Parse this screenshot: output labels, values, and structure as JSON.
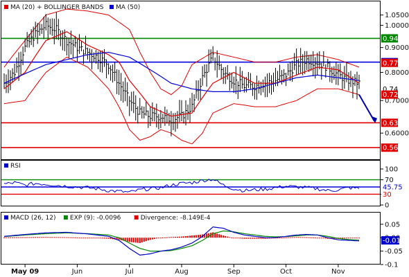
{
  "colors": {
    "price": "#000000",
    "ma20": "#e00000",
    "ma50": "#0000dd",
    "bands": "#e00000",
    "resistance": "#008800",
    "support": "#e00000",
    "current_line": "#0000dd",
    "arrow": "#0000aa",
    "macd": "#0000cc",
    "signal": "#008800",
    "divergence": "#e00000"
  },
  "chart_data": [
    {
      "type": "line",
      "panel": "price",
      "legend": [
        {
          "label": "MA (20) + BOLLINGER BANDS",
          "color": "#e00000"
        },
        {
          "label": "MA (50)",
          "color": "#0000dd"
        }
      ],
      "y_ticks": [
        "1.0500",
        "1.0000",
        "0.9000",
        "0.8000",
        "0.7000",
        "0.6000"
      ],
      "ylim": [
        0.53,
        1.12
      ],
      "scale": "log",
      "h_lines": [
        {
          "value": 0.94,
          "label": "0.94",
          "color": "#008800"
        },
        {
          "value": 0.84,
          "label": "0.84",
          "color": "#0000dd"
        },
        {
          "value": 0.63,
          "label": "0.63",
          "color": "#e00000"
        },
        {
          "value": 0.56,
          "label": "0.56",
          "color": "#e00000"
        }
      ],
      "value_tags": [
        {
          "value": 0.837,
          "label": "0.77",
          "color": "#e00000"
        },
        {
          "value": 0.74,
          "label": "0.74",
          "color": "#000000"
        },
        {
          "value": 0.72,
          "label": "0.72",
          "color": "#e00000"
        }
      ],
      "price_anchors": [
        [
          0,
          0.76
        ],
        [
          5,
          0.8
        ],
        [
          10,
          0.9
        ],
        [
          15,
          0.96
        ],
        [
          20,
          1.0
        ],
        [
          25,
          0.98
        ],
        [
          30,
          0.93
        ],
        [
          35,
          0.9
        ],
        [
          40,
          0.88
        ],
        [
          45,
          0.86
        ],
        [
          50,
          0.83
        ],
        [
          55,
          0.76
        ],
        [
          60,
          0.7
        ],
        [
          65,
          0.66
        ],
        [
          70,
          0.65
        ],
        [
          75,
          0.65
        ],
        [
          80,
          0.64
        ],
        [
          85,
          0.65
        ],
        [
          90,
          0.68
        ],
        [
          95,
          0.78
        ],
        [
          100,
          0.86
        ],
        [
          105,
          0.8
        ],
        [
          110,
          0.77
        ],
        [
          115,
          0.75
        ],
        [
          120,
          0.75
        ],
        [
          125,
          0.76
        ],
        [
          130,
          0.77
        ],
        [
          135,
          0.79
        ],
        [
          140,
          0.83
        ],
        [
          145,
          0.85
        ],
        [
          150,
          0.84
        ],
        [
          155,
          0.82
        ],
        [
          160,
          0.79
        ],
        [
          165,
          0.77
        ],
        [
          170,
          0.76
        ]
      ],
      "ma20_anchors": [
        [
          0,
          0.74
        ],
        [
          10,
          0.8
        ],
        [
          20,
          0.93
        ],
        [
          30,
          0.97
        ],
        [
          40,
          0.91
        ],
        [
          50,
          0.87
        ],
        [
          55,
          0.84
        ],
        [
          60,
          0.77
        ],
        [
          70,
          0.68
        ],
        [
          80,
          0.65
        ],
        [
          90,
          0.66
        ],
        [
          100,
          0.76
        ],
        [
          110,
          0.8
        ],
        [
          120,
          0.76
        ],
        [
          130,
          0.76
        ],
        [
          140,
          0.79
        ],
        [
          150,
          0.82
        ],
        [
          160,
          0.81
        ],
        [
          170,
          0.76
        ]
      ],
      "ma50_anchors": [
        [
          0,
          0.76
        ],
        [
          20,
          0.83
        ],
        [
          40,
          0.87
        ],
        [
          50,
          0.88
        ],
        [
          60,
          0.86
        ],
        [
          70,
          0.81
        ],
        [
          80,
          0.76
        ],
        [
          90,
          0.74
        ],
        [
          100,
          0.73
        ],
        [
          110,
          0.73
        ],
        [
          120,
          0.74
        ],
        [
          130,
          0.76
        ],
        [
          140,
          0.78
        ],
        [
          150,
          0.79
        ],
        [
          160,
          0.78
        ],
        [
          170,
          0.77
        ]
      ],
      "upper_band_anchors": [
        [
          0,
          0.82
        ],
        [
          10,
          0.93
        ],
        [
          20,
          1.05
        ],
        [
          30,
          1.08
        ],
        [
          40,
          1.07
        ],
        [
          50,
          1.05
        ],
        [
          60,
          0.98
        ],
        [
          65,
          0.88
        ],
        [
          70,
          0.8
        ],
        [
          75,
          0.74
        ],
        [
          80,
          0.72
        ],
        [
          85,
          0.75
        ],
        [
          90,
          0.83
        ],
        [
          100,
          0.88
        ],
        [
          110,
          0.86
        ],
        [
          120,
          0.84
        ],
        [
          130,
          0.84
        ],
        [
          140,
          0.86
        ],
        [
          150,
          0.87
        ],
        [
          160,
          0.85
        ],
        [
          170,
          0.82
        ]
      ],
      "lower_band_anchors": [
        [
          0,
          0.69
        ],
        [
          10,
          0.7
        ],
        [
          20,
          0.8
        ],
        [
          30,
          0.86
        ],
        [
          40,
          0.82
        ],
        [
          50,
          0.74
        ],
        [
          55,
          0.68
        ],
        [
          60,
          0.61
        ],
        [
          65,
          0.58
        ],
        [
          70,
          0.59
        ],
        [
          75,
          0.61
        ],
        [
          80,
          0.6
        ],
        [
          85,
          0.58
        ],
        [
          90,
          0.57
        ],
        [
          95,
          0.6
        ],
        [
          100,
          0.66
        ],
        [
          110,
          0.69
        ],
        [
          120,
          0.68
        ],
        [
          130,
          0.68
        ],
        [
          140,
          0.7
        ],
        [
          150,
          0.74
        ],
        [
          160,
          0.74
        ],
        [
          170,
          0.72
        ]
      ]
    },
    {
      "type": "line",
      "panel": "rsi",
      "legend": [
        {
          "label": "RSI",
          "color": "#0000cc"
        }
      ],
      "y_ticks": [
        "100",
        "70",
        "30",
        "0"
      ],
      "ylim": [
        0,
        100
      ],
      "h_lines": [
        {
          "value": 70,
          "color": "#008800"
        },
        {
          "value": 50,
          "color": "#0000dd"
        },
        {
          "value": 30,
          "color": "#e00000"
        }
      ],
      "value_tags": [
        {
          "value": 50,
          "label": "45.75",
          "color": "#0000cc"
        },
        {
          "value": 30,
          "label": "30",
          "color": "#e00000"
        }
      ],
      "rsi_anchors": [
        [
          0,
          58
        ],
        [
          5,
          62
        ],
        [
          10,
          55
        ],
        [
          15,
          60
        ],
        [
          20,
          58
        ],
        [
          25,
          55
        ],
        [
          30,
          52
        ],
        [
          35,
          50
        ],
        [
          40,
          48
        ],
        [
          45,
          45
        ],
        [
          50,
          40
        ],
        [
          55,
          38
        ],
        [
          60,
          35
        ],
        [
          65,
          42
        ],
        [
          70,
          45
        ],
        [
          75,
          48
        ],
        [
          80,
          55
        ],
        [
          85,
          60
        ],
        [
          90,
          62
        ],
        [
          95,
          68
        ],
        [
          100,
          72
        ],
        [
          105,
          55
        ],
        [
          110,
          45
        ],
        [
          115,
          40
        ],
        [
          120,
          42
        ],
        [
          125,
          44
        ],
        [
          130,
          48
        ],
        [
          135,
          52
        ],
        [
          140,
          50
        ],
        [
          145,
          48
        ],
        [
          150,
          45
        ],
        [
          155,
          40
        ],
        [
          160,
          42
        ],
        [
          165,
          48
        ],
        [
          170,
          46
        ]
      ]
    },
    {
      "type": "line",
      "panel": "macd",
      "legend": [
        {
          "label": "MACD (26, 12)",
          "color": "#0000cc"
        },
        {
          "label": "EXP (9): -0.0096",
          "color": "#008800"
        },
        {
          "label": "Divergence: -8.149E-4",
          "color": "#e00000"
        }
      ],
      "y_ticks": [
        "0.05",
        "0.00",
        "-0.05",
        "-0.1"
      ],
      "ylim": [
        -0.1,
        0.065
      ],
      "value_tags": [
        {
          "value": -0.01,
          "label": "-0.01",
          "color": "#0000cc"
        }
      ],
      "macd_anchors": [
        [
          0,
          0.005
        ],
        [
          10,
          0.012
        ],
        [
          20,
          0.018
        ],
        [
          30,
          0.02
        ],
        [
          40,
          0.014
        ],
        [
          50,
          0.005
        ],
        [
          55,
          -0.01
        ],
        [
          60,
          -0.04
        ],
        [
          65,
          -0.065
        ],
        [
          70,
          -0.06
        ],
        [
          75,
          -0.05
        ],
        [
          80,
          -0.045
        ],
        [
          85,
          -0.035
        ],
        [
          90,
          -0.02
        ],
        [
          95,
          0.005
        ],
        [
          100,
          0.04
        ],
        [
          105,
          0.035
        ],
        [
          110,
          0.02
        ],
        [
          115,
          0.01
        ],
        [
          120,
          0.005
        ],
        [
          125,
          0.0
        ],
        [
          130,
          0.0
        ],
        [
          135,
          0.005
        ],
        [
          140,
          0.01
        ],
        [
          145,
          0.012
        ],
        [
          150,
          0.01
        ],
        [
          155,
          0.0
        ],
        [
          160,
          -0.008
        ],
        [
          165,
          -0.01
        ],
        [
          170,
          -0.012
        ]
      ],
      "signal_anchors": [
        [
          0,
          0.004
        ],
        [
          10,
          0.01
        ],
        [
          20,
          0.015
        ],
        [
          30,
          0.018
        ],
        [
          40,
          0.015
        ],
        [
          50,
          0.01
        ],
        [
          55,
          0.0
        ],
        [
          60,
          -0.02
        ],
        [
          65,
          -0.04
        ],
        [
          70,
          -0.05
        ],
        [
          75,
          -0.05
        ],
        [
          80,
          -0.048
        ],
        [
          85,
          -0.04
        ],
        [
          90,
          -0.03
        ],
        [
          95,
          -0.01
        ],
        [
          100,
          0.015
        ],
        [
          105,
          0.025
        ],
        [
          110,
          0.022
        ],
        [
          115,
          0.015
        ],
        [
          120,
          0.01
        ],
        [
          125,
          0.005
        ],
        [
          130,
          0.003
        ],
        [
          135,
          0.004
        ],
        [
          140,
          0.007
        ],
        [
          145,
          0.01
        ],
        [
          150,
          0.01
        ],
        [
          155,
          0.005
        ],
        [
          160,
          -0.003
        ],
        [
          165,
          -0.007
        ],
        [
          170,
          -0.0096
        ]
      ]
    }
  ],
  "x_months": [
    {
      "label": "May 09",
      "bold": true,
      "index": 10
    },
    {
      "label": "Jun",
      "index": 35
    },
    {
      "label": "Jul",
      "index": 60
    },
    {
      "label": "Aug",
      "index": 85
    },
    {
      "label": "Sep",
      "index": 110
    },
    {
      "label": "Oct",
      "index": 135
    },
    {
      "label": "Nov",
      "index": 160
    }
  ],
  "n_bars": 171
}
